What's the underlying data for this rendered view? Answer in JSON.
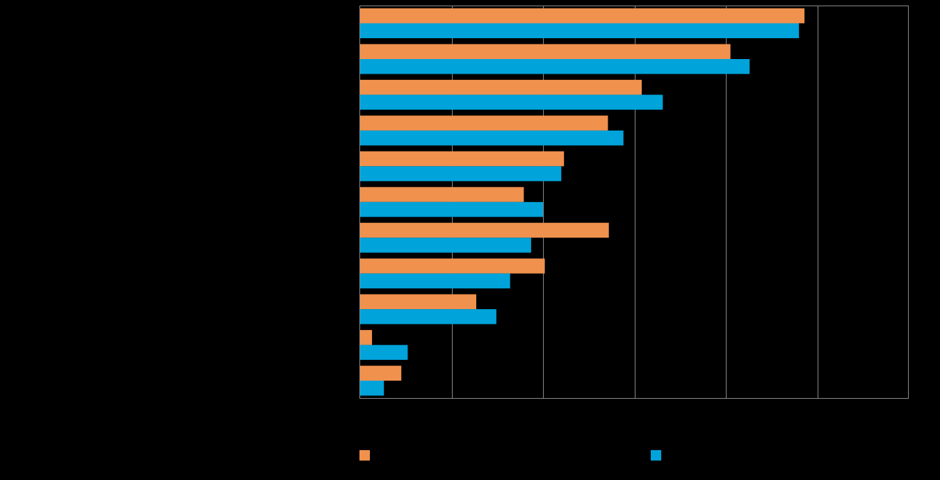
{
  "chart_data": {
    "type": "bar",
    "orientation": "horizontal",
    "categories": [
      "",
      "",
      "",
      "",
      "",
      "",
      "",
      "",
      "",
      "",
      ""
    ],
    "series": [
      {
        "color": "#F0914E",
        "values": [
          48.6,
          40.5,
          30.8,
          27.1,
          22.3,
          17.9,
          27.2,
          20.2,
          12.7,
          1.3,
          4.5
        ]
      },
      {
        "color": "#00A3DA",
        "values": [
          48.0,
          42.6,
          33.1,
          28.8,
          22.0,
          20.0,
          18.7,
          16.4,
          14.9,
          5.2,
          2.6
        ]
      }
    ],
    "xlim": [
      0,
      60
    ],
    "grid": true,
    "legend_position": "bottom",
    "background": "#000000",
    "gridline_color": "#8C8C8C"
  }
}
